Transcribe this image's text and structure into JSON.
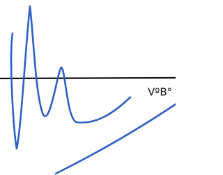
{
  "labels": {
    "axis_label": "VºB°"
  }
}
